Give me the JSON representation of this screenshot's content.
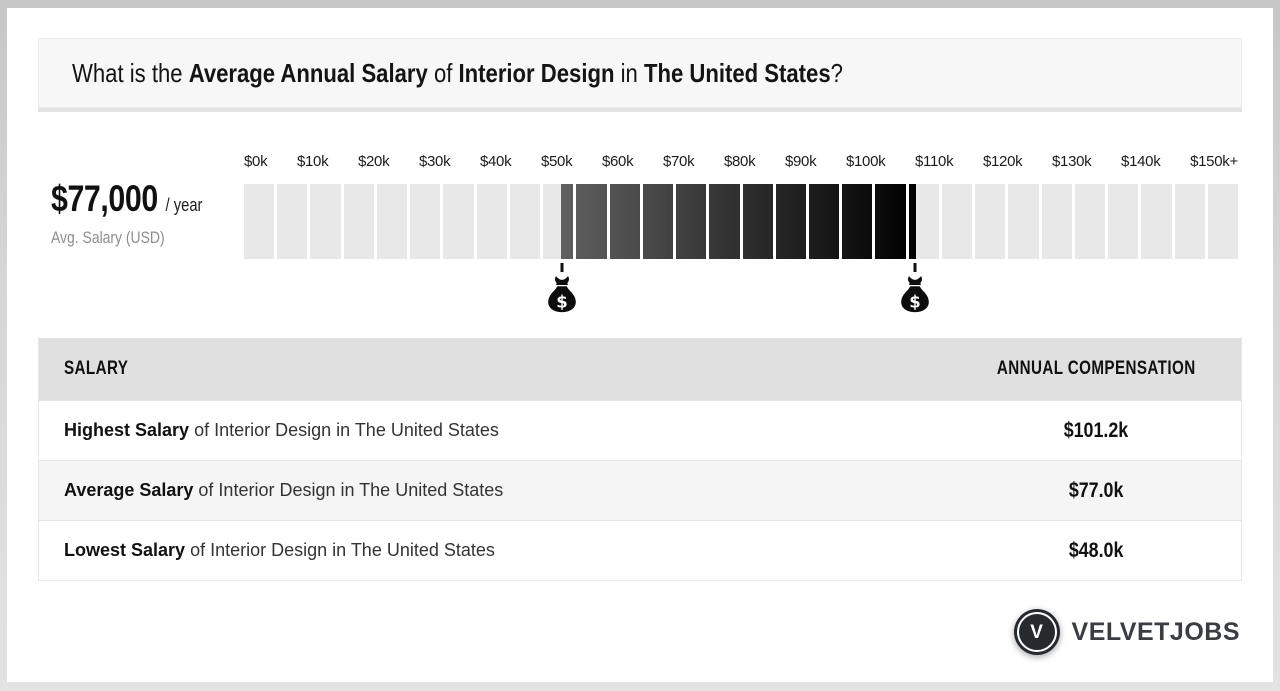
{
  "question": {
    "part1": "What is the ",
    "part2": "Average Annual Salary",
    "part3": " of ",
    "part4": "Interior Design",
    "part5": " in ",
    "part6": "The United States",
    "part7": "?"
  },
  "summary": {
    "amount": "$77,000",
    "per": "/ year",
    "caption": "Avg. Salary (USD)"
  },
  "chart_data": {
    "type": "bar",
    "title": "Salary range of Interior Design in The United States",
    "axis_labels": [
      "$0k",
      "$10k",
      "$20k",
      "$30k",
      "$40k",
      "$50k",
      "$60k",
      "$70k",
      "$80k",
      "$90k",
      "$100k",
      "$110k",
      "$120k",
      "$130k",
      "$140k",
      "$150k+"
    ],
    "axis_min_k": 0,
    "axis_max_k": 150,
    "tick_step_k": 10,
    "segment_step_k": 5,
    "segment_count": 30,
    "range": {
      "lowest_k": 48.0,
      "average_k": 77.0,
      "highest_k": 101.2
    },
    "markers": [
      {
        "value_k": 48.0,
        "icon": "money-bag-icon",
        "symbol": "$"
      },
      {
        "value_k": 101.2,
        "icon": "money-bag-icon",
        "symbol": "$"
      }
    ],
    "colors": {
      "empty_segment": "#e8e8e8",
      "fill_start_gray": 96,
      "fill_end_gray": 0
    },
    "legend": "none",
    "grid": "off"
  },
  "table": {
    "headers": {
      "salary": "SALARY",
      "compensation": "ANNUAL COMPENSATION"
    },
    "rows": [
      {
        "label_bold": "Highest Salary",
        "label_rest": " of Interior Design in The United States",
        "value": "$101.2k",
        "shaded": false
      },
      {
        "label_bold": "Average Salary",
        "label_rest": " of Interior Design in The United States",
        "value": "$77.0k",
        "shaded": true
      },
      {
        "label_bold": "Lowest Salary",
        "label_rest": " of Interior Design in The United States",
        "value": "$48.0k",
        "shaded": false
      }
    ]
  },
  "footer": {
    "brand": "VELVETJOBS",
    "logo_letter": "V"
  }
}
